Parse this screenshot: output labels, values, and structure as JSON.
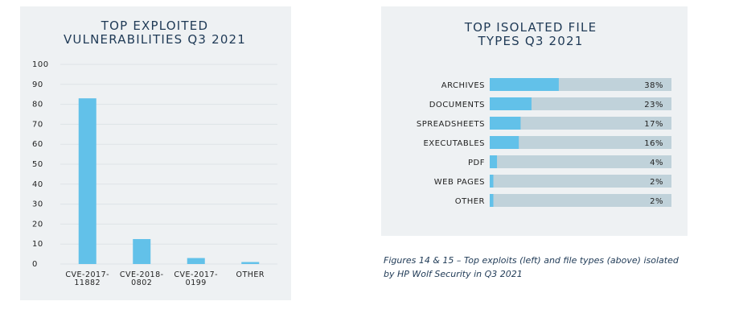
{
  "chart_data": [
    {
      "type": "bar",
      "title": "TOP EXPLOITED VULNERABILITIES Q3 2021",
      "categories": [
        "CVE-2017-11882",
        "CVE-2018-0802",
        "CVE-2017-0199",
        "OTHER"
      ],
      "values": [
        83,
        12.5,
        3,
        1
      ],
      "color": "#62c1e9",
      "ylim": [
        0,
        100
      ],
      "yticks": [
        0,
        10,
        20,
        30,
        40,
        50,
        60,
        70,
        80,
        90,
        100
      ],
      "grid": true
    },
    {
      "type": "hbar",
      "title": "TOP ISOLATED FILE TYPES Q3 2021",
      "categories": [
        "ARCHIVES",
        "DOCUMENTS",
        "SPREADSHEETS",
        "EXECUTABLES",
        "PDF",
        "WEB PAGES",
        "OTHER"
      ],
      "values": [
        38,
        23,
        17,
        16,
        4,
        2,
        2
      ],
      "value_labels": [
        "38%",
        "23%",
        "17%",
        "16%",
        "4%",
        "2%",
        "2%"
      ],
      "color": "#62c1e9",
      "track_color": "#c0d2da",
      "xlim": [
        0,
        100
      ]
    }
  ],
  "caption": "Figures 14 & 15 – Top exploits (left) and file types (above) isolated by HP Wolf Security in Q3 2021"
}
